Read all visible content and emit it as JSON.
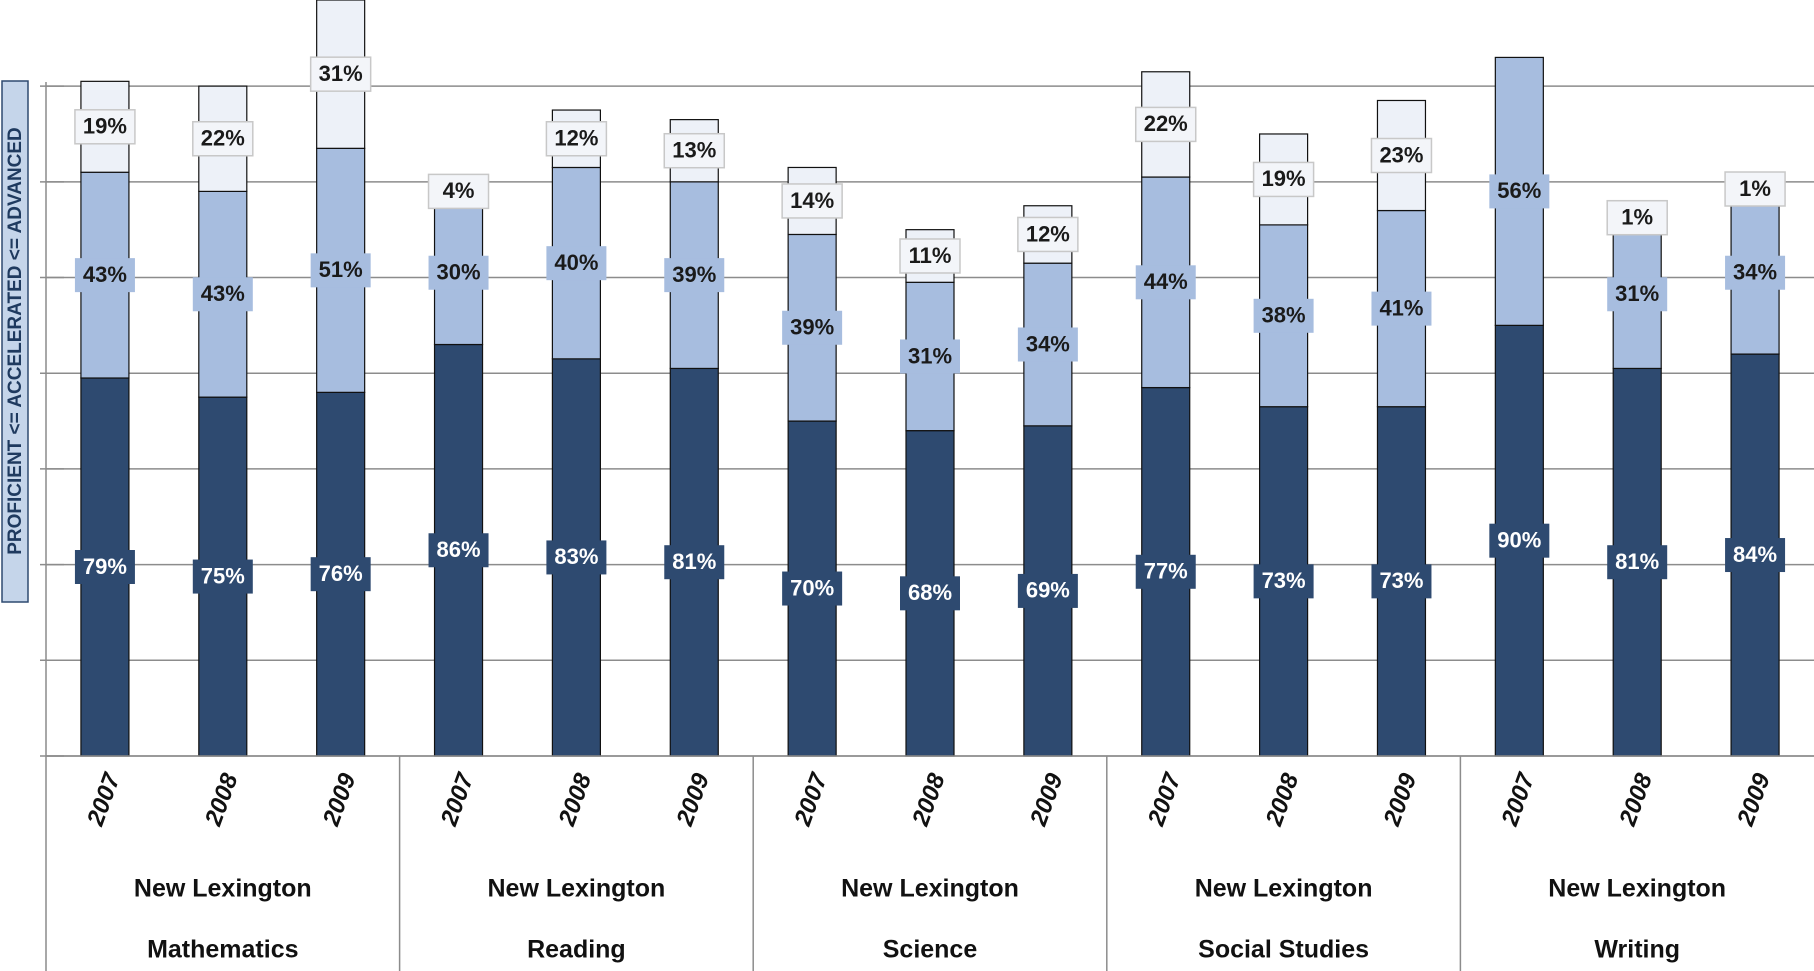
{
  "chart_data": {
    "type": "stacked_bar",
    "y_label": "PROFICIENT <= ACCELERATED <= ADVANCED",
    "categories": [
      "2007",
      "2008",
      "2009",
      "2007",
      "2008",
      "2009",
      "2007",
      "2008",
      "2009",
      "2007",
      "2008",
      "2009",
      "2007",
      "2008",
      "2009"
    ],
    "groups": [
      {
        "label": "New Lexington",
        "subject": "Mathematics"
      },
      {
        "label": "New Lexington",
        "subject": "Reading"
      },
      {
        "label": "New Lexington",
        "subject": "Science"
      },
      {
        "label": "New Lexington",
        "subject": "Social Studies"
      },
      {
        "label": "New Lexington",
        "subject": "Writing"
      }
    ],
    "series": [
      {
        "color": "#2e4a70",
        "values": [
          79,
          75,
          76,
          86,
          83,
          81,
          70,
          68,
          69,
          77,
          73,
          73,
          90,
          81,
          84
        ],
        "value_labels": [
          "79%",
          "75%",
          "76%",
          "86%",
          "83%",
          "81%",
          "70%",
          "68%",
          "69%",
          "77%",
          "73%",
          "73%",
          "90%",
          "81%",
          "84%"
        ]
      },
      {
        "color": "#a7bddf",
        "values": [
          43,
          43,
          51,
          30,
          40,
          39,
          39,
          31,
          34,
          44,
          38,
          41,
          56,
          31,
          34
        ],
        "value_labels": [
          "43%",
          "43%",
          "51%",
          "30%",
          "40%",
          "39%",
          "39%",
          "31%",
          "34%",
          "44%",
          "38%",
          "41%",
          "56%",
          "31%",
          "34%"
        ]
      },
      {
        "color": "#edf1f8",
        "values": [
          19,
          22,
          31,
          4,
          12,
          13,
          14,
          11,
          12,
          22,
          19,
          23,
          null,
          1,
          1
        ],
        "value_labels": [
          "19%",
          "22%",
          "31%",
          "4%",
          "12%",
          "13%",
          "14%",
          "11%",
          "12%",
          "22%",
          "19%",
          "23%",
          null,
          "1%",
          "1%"
        ]
      }
    ],
    "ylim": [
      0,
      158
    ],
    "yticks": [
      0,
      20,
      40,
      60,
      80,
      100,
      120,
      140
    ],
    "grid": true
  }
}
